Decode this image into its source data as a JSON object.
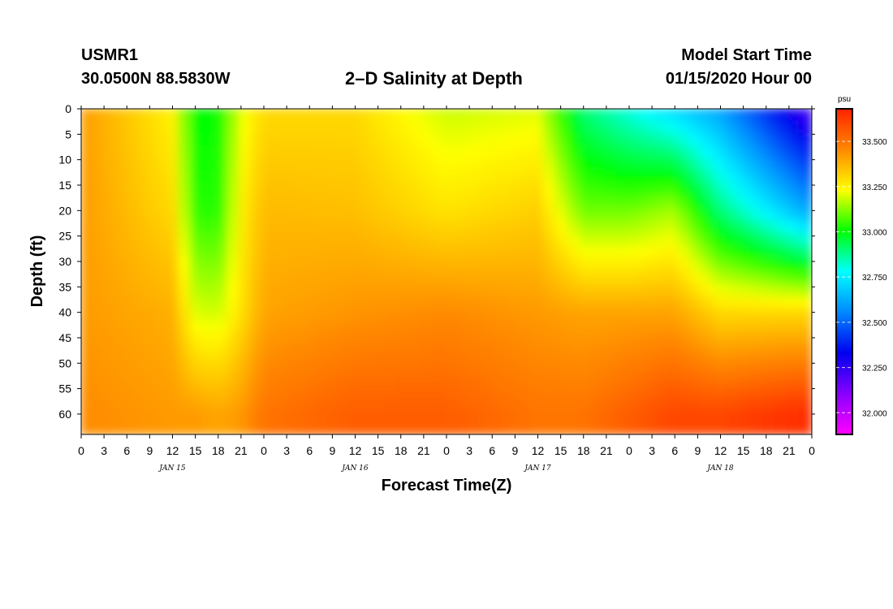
{
  "header": {
    "station": "USMR1",
    "coords": "30.0500N 88.5830W",
    "title": "2–D Salinity at Depth",
    "start_label": "Model Start Time",
    "start_value": "01/15/2020 Hour 00"
  },
  "chart_data": {
    "type": "heatmap",
    "title": "2–D Salinity at Depth",
    "xlabel": "Forecast Time(Z)",
    "ylabel": "Depth (ft)",
    "x_tick_labels": [
      "0",
      "3",
      "6",
      "9",
      "12",
      "15",
      "18",
      "21",
      "0",
      "3",
      "6",
      "9",
      "12",
      "15",
      "18",
      "21",
      "0",
      "3",
      "6",
      "9",
      "12",
      "15",
      "18",
      "21",
      "0",
      "3",
      "6",
      "9",
      "12",
      "15",
      "18",
      "21",
      "0"
    ],
    "day_labels": [
      {
        "text": "JAN 15",
        "hour": 12
      },
      {
        "text": "JAN 16",
        "hour": 36
      },
      {
        "text": "JAN 17",
        "hour": 60
      },
      {
        "text": "JAN 18",
        "hour": 84
      }
    ],
    "xlim_hours": [
      0,
      96
    ],
    "y_ticks": [
      0,
      5,
      10,
      15,
      20,
      25,
      30,
      35,
      40,
      45,
      50,
      55,
      60
    ],
    "ylim_ft": [
      0,
      64
    ],
    "y_inverted": true,
    "colorbar": {
      "unit": "psu",
      "ticks": [
        "33.500",
        "33.250",
        "33.000",
        "32.750",
        "32.500",
        "32.250",
        "32.000"
      ],
      "range": [
        31.88,
        33.68
      ],
      "colors": [
        "#ff00ff",
        "#8800ff",
        "#0000ee",
        "#0088ff",
        "#00ffff",
        "#00ff00",
        "#ffff00",
        "#ff8800",
        "#ff2200"
      ]
    },
    "field_description": "salinity (psu) by forecast hour and depth",
    "field_samples": {
      "hours": [
        0,
        12,
        15,
        18,
        21,
        24,
        36,
        48,
        60,
        66,
        72,
        78,
        84,
        96
      ],
      "depth_ft": [
        0,
        20,
        40,
        60
      ],
      "values_psu": [
        [
          33.42,
          33.25,
          33.0,
          33.0,
          33.2,
          33.3,
          33.3,
          33.18,
          33.2,
          32.9,
          32.8,
          32.7,
          32.6,
          32.2
        ],
        [
          33.42,
          33.3,
          33.05,
          33.02,
          33.25,
          33.36,
          33.35,
          33.28,
          33.32,
          33.1,
          33.1,
          33.15,
          32.9,
          32.6
        ],
        [
          33.42,
          33.38,
          33.2,
          33.18,
          33.28,
          33.4,
          33.43,
          33.45,
          33.42,
          33.4,
          33.4,
          33.4,
          33.3,
          33.3
        ],
        [
          33.45,
          33.42,
          33.42,
          33.4,
          33.42,
          33.5,
          33.55,
          33.55,
          33.5,
          33.5,
          33.55,
          33.6,
          33.6,
          33.66
        ]
      ]
    }
  }
}
